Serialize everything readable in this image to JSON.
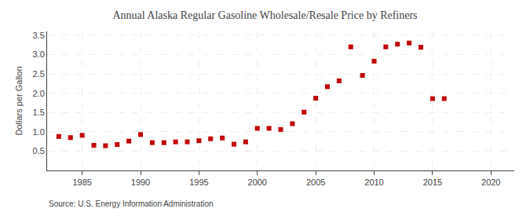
{
  "chart_data": {
    "type": "scatter",
    "title": "Annual Alaska Regular Gasoline Wholesale/Resale Price by Refiners",
    "ylabel": "Dollars per Gallon",
    "source": "Source: U.S. Energy Information Administration",
    "x": [
      1983,
      1984,
      1985,
      1986,
      1987,
      1988,
      1989,
      1990,
      1991,
      1992,
      1993,
      1994,
      1995,
      1996,
      1997,
      1998,
      1999,
      2000,
      2001,
      2002,
      2003,
      2004,
      2005,
      2006,
      2007,
      2008,
      2009,
      2010,
      2011,
      2012,
      2013,
      2014,
      2015,
      2016
    ],
    "values": [
      0.88,
      0.85,
      0.91,
      0.65,
      0.64,
      0.67,
      0.76,
      0.93,
      0.72,
      0.72,
      0.74,
      0.74,
      0.77,
      0.82,
      0.84,
      0.68,
      0.74,
      1.09,
      1.09,
      1.06,
      1.21,
      1.51,
      1.87,
      2.17,
      2.32,
      3.2,
      2.46,
      2.83,
      3.2,
      3.27,
      3.3,
      3.19,
      1.86,
      1.86
    ],
    "color": "#c00000",
    "marker": "square",
    "xlim": [
      1982,
      2022
    ],
    "ylim": [
      0.0,
      3.6
    ],
    "xticks": [
      1985,
      1990,
      1995,
      2000,
      2005,
      2010,
      2015,
      2020
    ],
    "yticks": [
      0.5,
      {
        "value": 1.0,
        "label": "1.0"
      },
      1.5,
      {
        "value": 2.0,
        "label": "2.0"
      },
      2.5,
      {
        "value": 3.0,
        "label": "3.0"
      },
      3.5
    ],
    "grid": true
  }
}
